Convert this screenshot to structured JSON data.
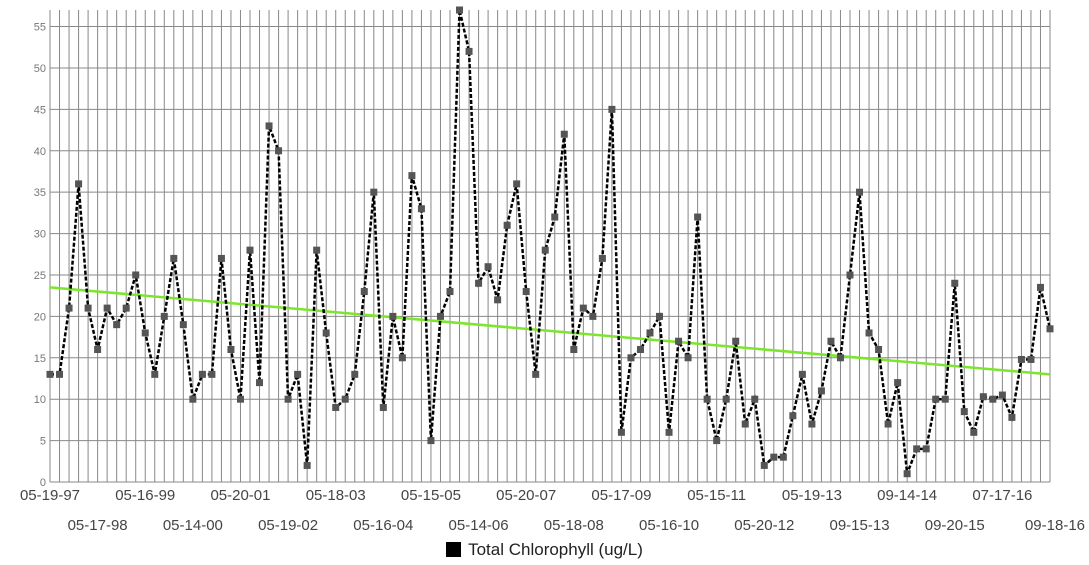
{
  "chart_data": {
    "type": "line",
    "title": "",
    "xlabel": "",
    "ylabel": "",
    "ylim": [
      0,
      57
    ],
    "y_ticks": [
      0,
      5,
      10,
      15,
      20,
      25,
      30,
      35,
      40,
      45,
      50,
      55
    ],
    "x_tick_labels": [
      "05-19-97",
      "05-17-98",
      "05-16-99",
      "05-14-00",
      "05-20-01",
      "05-19-02",
      "05-18-03",
      "05-16-04",
      "05-15-05",
      "05-14-06",
      "05-20-07",
      "05-18-08",
      "05-17-09",
      "05-16-10",
      "05-15-11",
      "05-20-12",
      "05-19-13",
      "09-15-13",
      "09-14-14",
      "09-20-15",
      "07-17-16",
      "09-18-16"
    ],
    "grid": true,
    "legend_position": "bottom",
    "series": [
      {
        "name": "Total Chlorophyll (ug/L)",
        "color": "#000000",
        "marker_color": "#555555",
        "values": [
          13,
          13,
          21,
          36,
          21,
          16,
          21,
          19,
          21,
          25,
          18,
          13,
          20,
          27,
          19,
          10,
          13,
          13,
          27,
          16,
          10,
          28,
          12,
          43,
          40,
          10,
          13,
          2,
          28,
          18,
          9,
          10,
          13,
          23,
          35,
          9,
          20,
          15,
          37,
          33,
          5,
          20,
          23,
          57,
          52,
          24,
          26,
          22,
          31,
          36,
          23,
          13,
          28,
          32,
          42,
          16,
          21,
          20,
          27,
          45,
          6,
          15,
          16,
          18,
          20,
          6,
          17,
          15,
          32,
          10,
          5,
          10,
          17,
          7,
          10,
          2,
          3,
          3,
          8,
          13,
          7,
          11,
          17,
          15,
          25,
          35,
          18,
          16,
          7,
          12,
          1,
          4,
          4,
          10,
          10,
          24,
          8.5,
          6,
          10.3,
          10,
          10.5,
          7.8,
          14.8,
          14.8,
          23.5,
          18.5
        ]
      }
    ],
    "trendline": {
      "color": "#7CE62E",
      "start_value": 23.5,
      "end_value": 13
    }
  },
  "legend": {
    "label": "Total Chlorophyll (ug/L)",
    "swatch_color": "#000000"
  }
}
